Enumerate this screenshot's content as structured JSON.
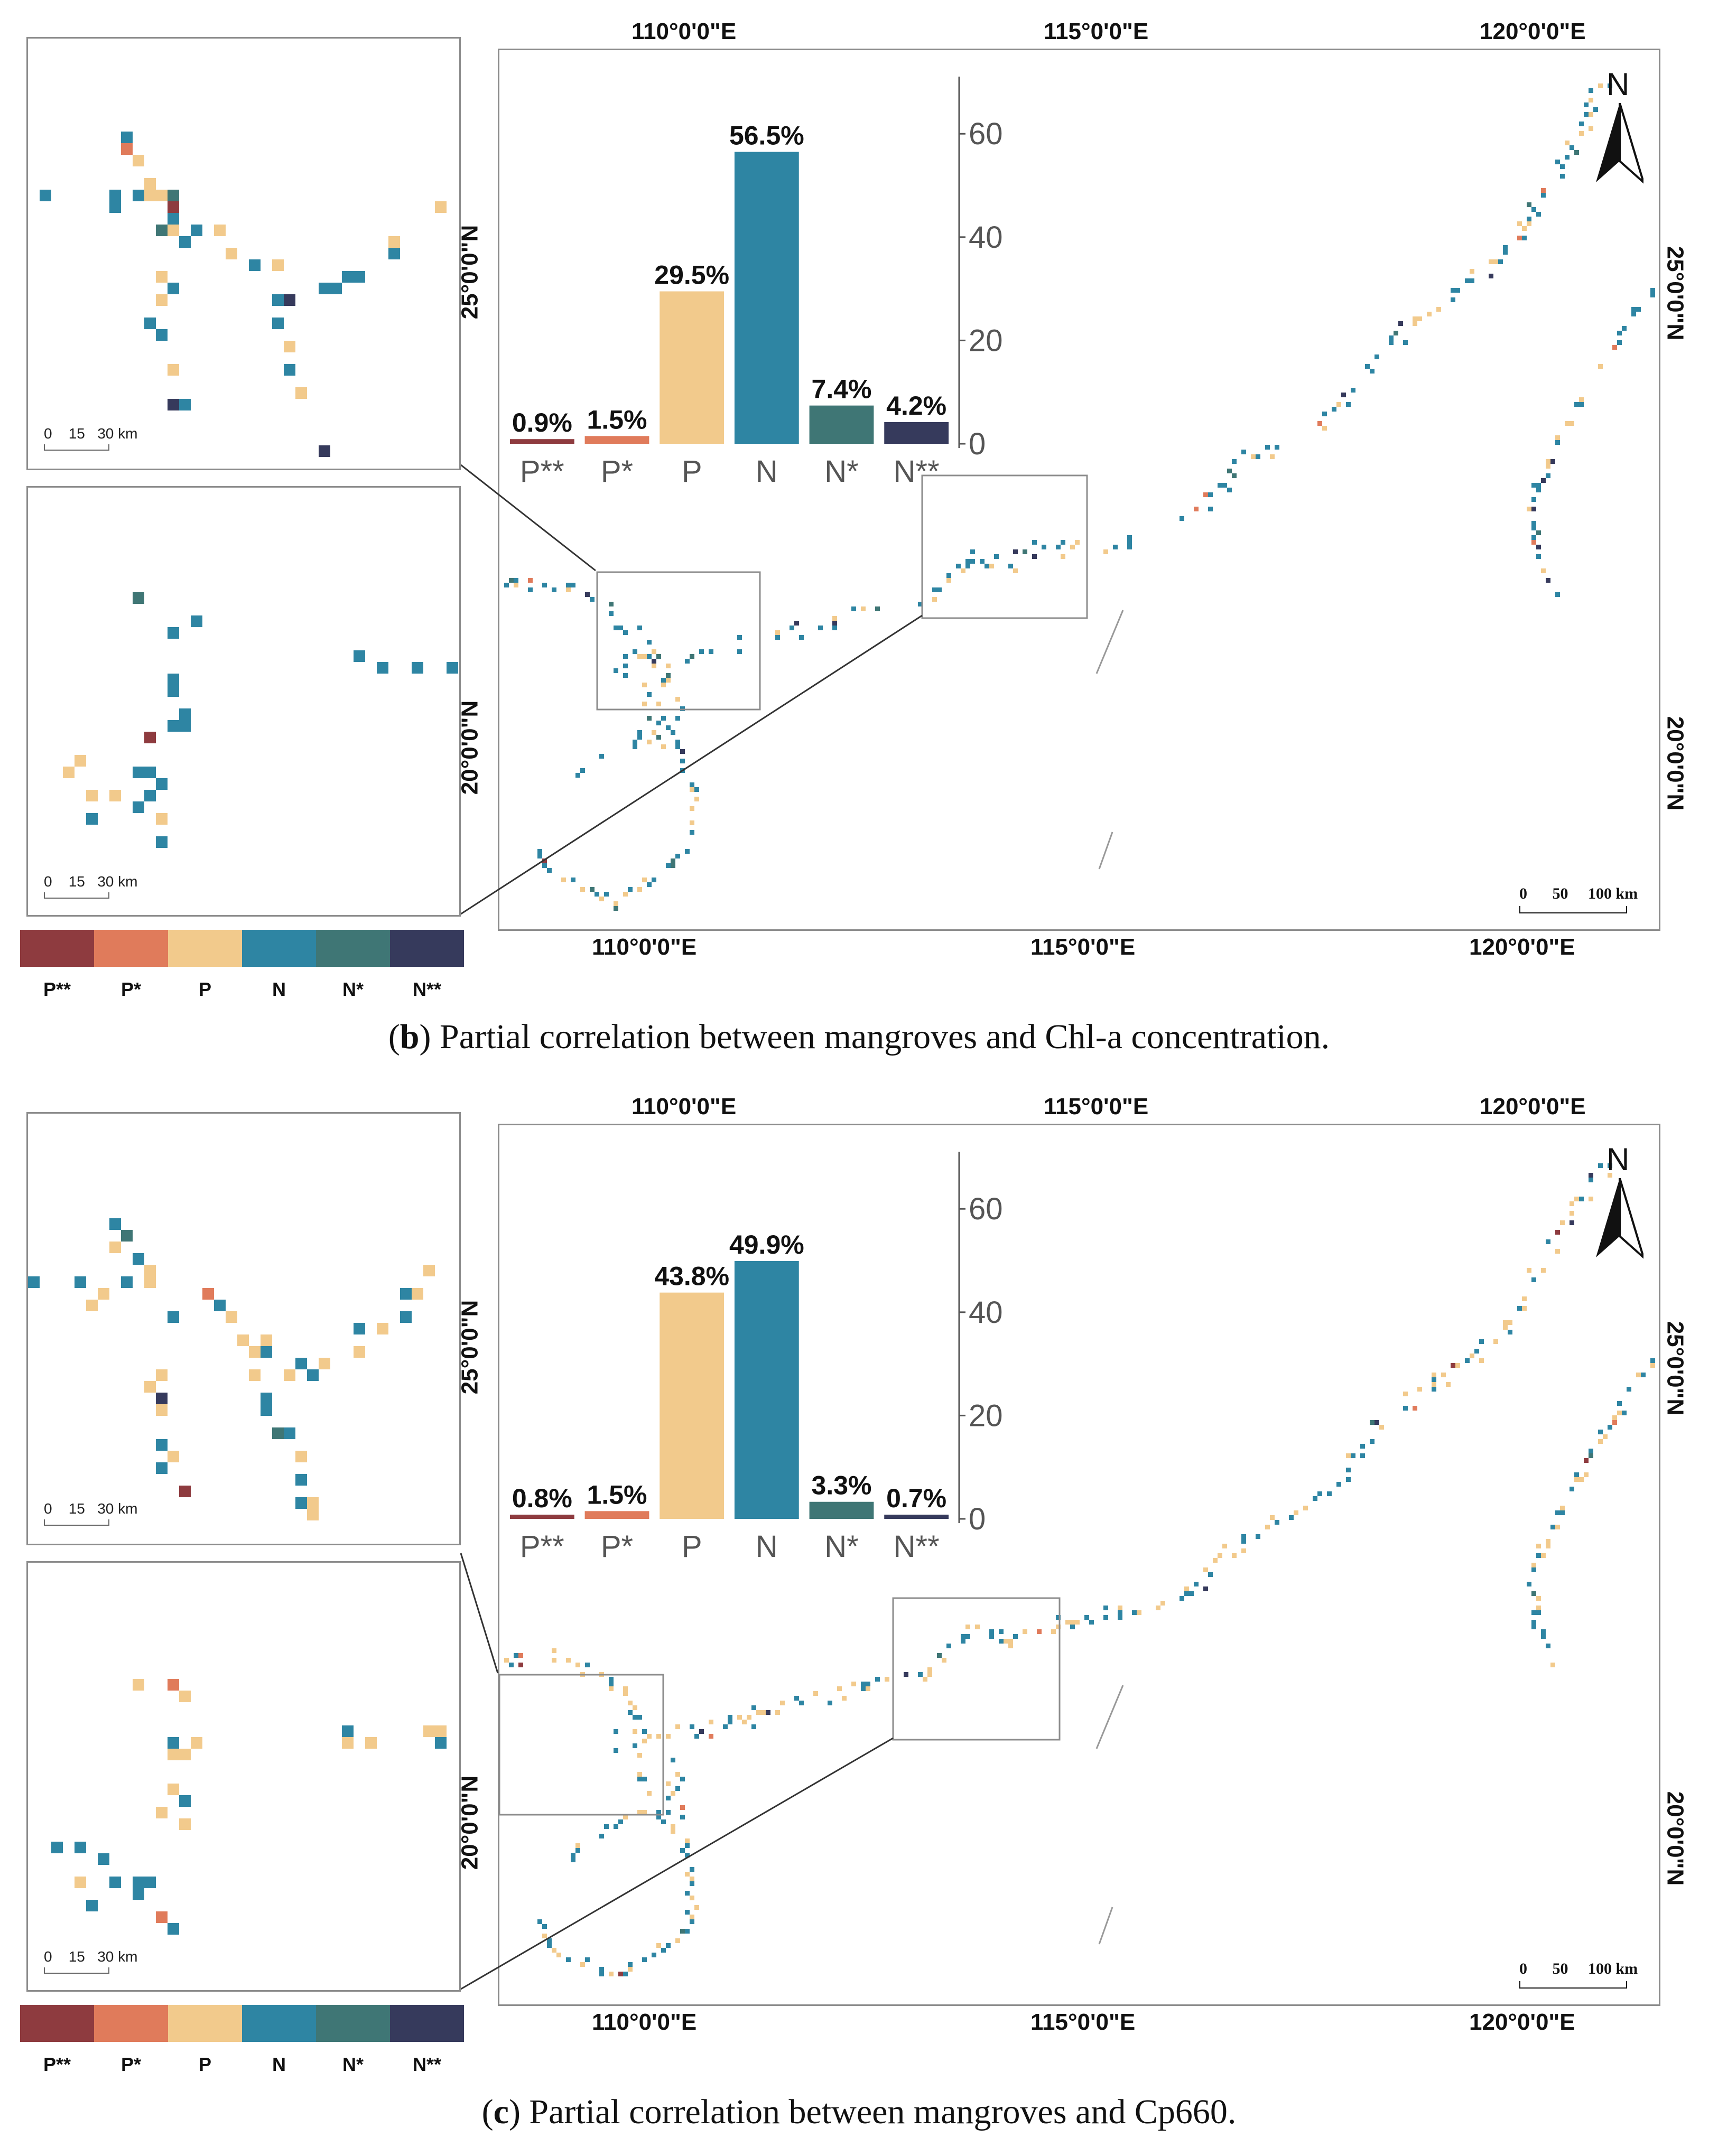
{
  "colors": {
    "P**": "#8e3b3f",
    "P*": "#e07b5b",
    "P": "#f2ca8c",
    "N": "#2e85a3",
    "N*": "#3f7675",
    "N**": "#363a5c",
    "frame": "#8c8c8c"
  },
  "legend": {
    "labels": [
      "P**",
      "P*",
      "P",
      "N",
      "N*",
      "N**"
    ]
  },
  "panels": [
    {
      "id": "b",
      "caption_letter": "b",
      "caption_text": ") Partial correlation between mangroves and Chl-a concentration.",
      "caption_open": "(",
      "lon_labels": [
        "110°0'0\"E",
        "115°0'0\"E",
        "120°0'0\"E"
      ],
      "lat_labels": [
        "25°0'0\"N",
        "20°0'0\"N"
      ],
      "scale_map": [
        "0",
        "50",
        "100 km"
      ],
      "scale_inset": [
        "0",
        "15",
        "30 km"
      ],
      "north": "N",
      "chart_data": {
        "type": "bar",
        "categories": [
          "P**",
          "P*",
          "P",
          "N",
          "N*",
          "N**"
        ],
        "values": [
          0.9,
          1.5,
          29.5,
          56.5,
          7.4,
          4.2
        ],
        "value_labels": [
          "0.9%",
          "1.5%",
          "29.5%",
          "56.5%",
          "7.4%",
          "4.2%"
        ],
        "yticks": [
          "0",
          "20",
          "40",
          "60"
        ],
        "ylim": [
          0,
          68
        ],
        "title": "",
        "xlabel": "",
        "ylabel": ""
      }
    },
    {
      "id": "c",
      "caption_letter": "c",
      "caption_text": ") Partial correlation between mangroves and Cp660.",
      "caption_open": "(",
      "lon_labels": [
        "110°0'0\"E",
        "115°0'0\"E",
        "120°0'0\"E"
      ],
      "lat_labels": [
        "25°0'0\"N",
        "20°0'0\"N"
      ],
      "scale_map": [
        "0",
        "50",
        "100 km"
      ],
      "scale_inset": [
        "0",
        "15",
        "30 km"
      ],
      "north": "N",
      "chart_data": {
        "type": "bar",
        "categories": [
          "P**",
          "P*",
          "P",
          "N",
          "N*",
          "N**"
        ],
        "values": [
          0.8,
          1.5,
          43.8,
          49.9,
          3.3,
          0.7
        ],
        "value_labels": [
          "0.8%",
          "1.5%",
          "43.8%",
          "49.9%",
          "3.3%",
          "0.7%"
        ],
        "yticks": [
          "0",
          "20",
          "40",
          "60"
        ],
        "ylim": [
          0,
          68
        ],
        "title": "",
        "xlabel": "",
        "ylabel": ""
      }
    }
  ]
}
